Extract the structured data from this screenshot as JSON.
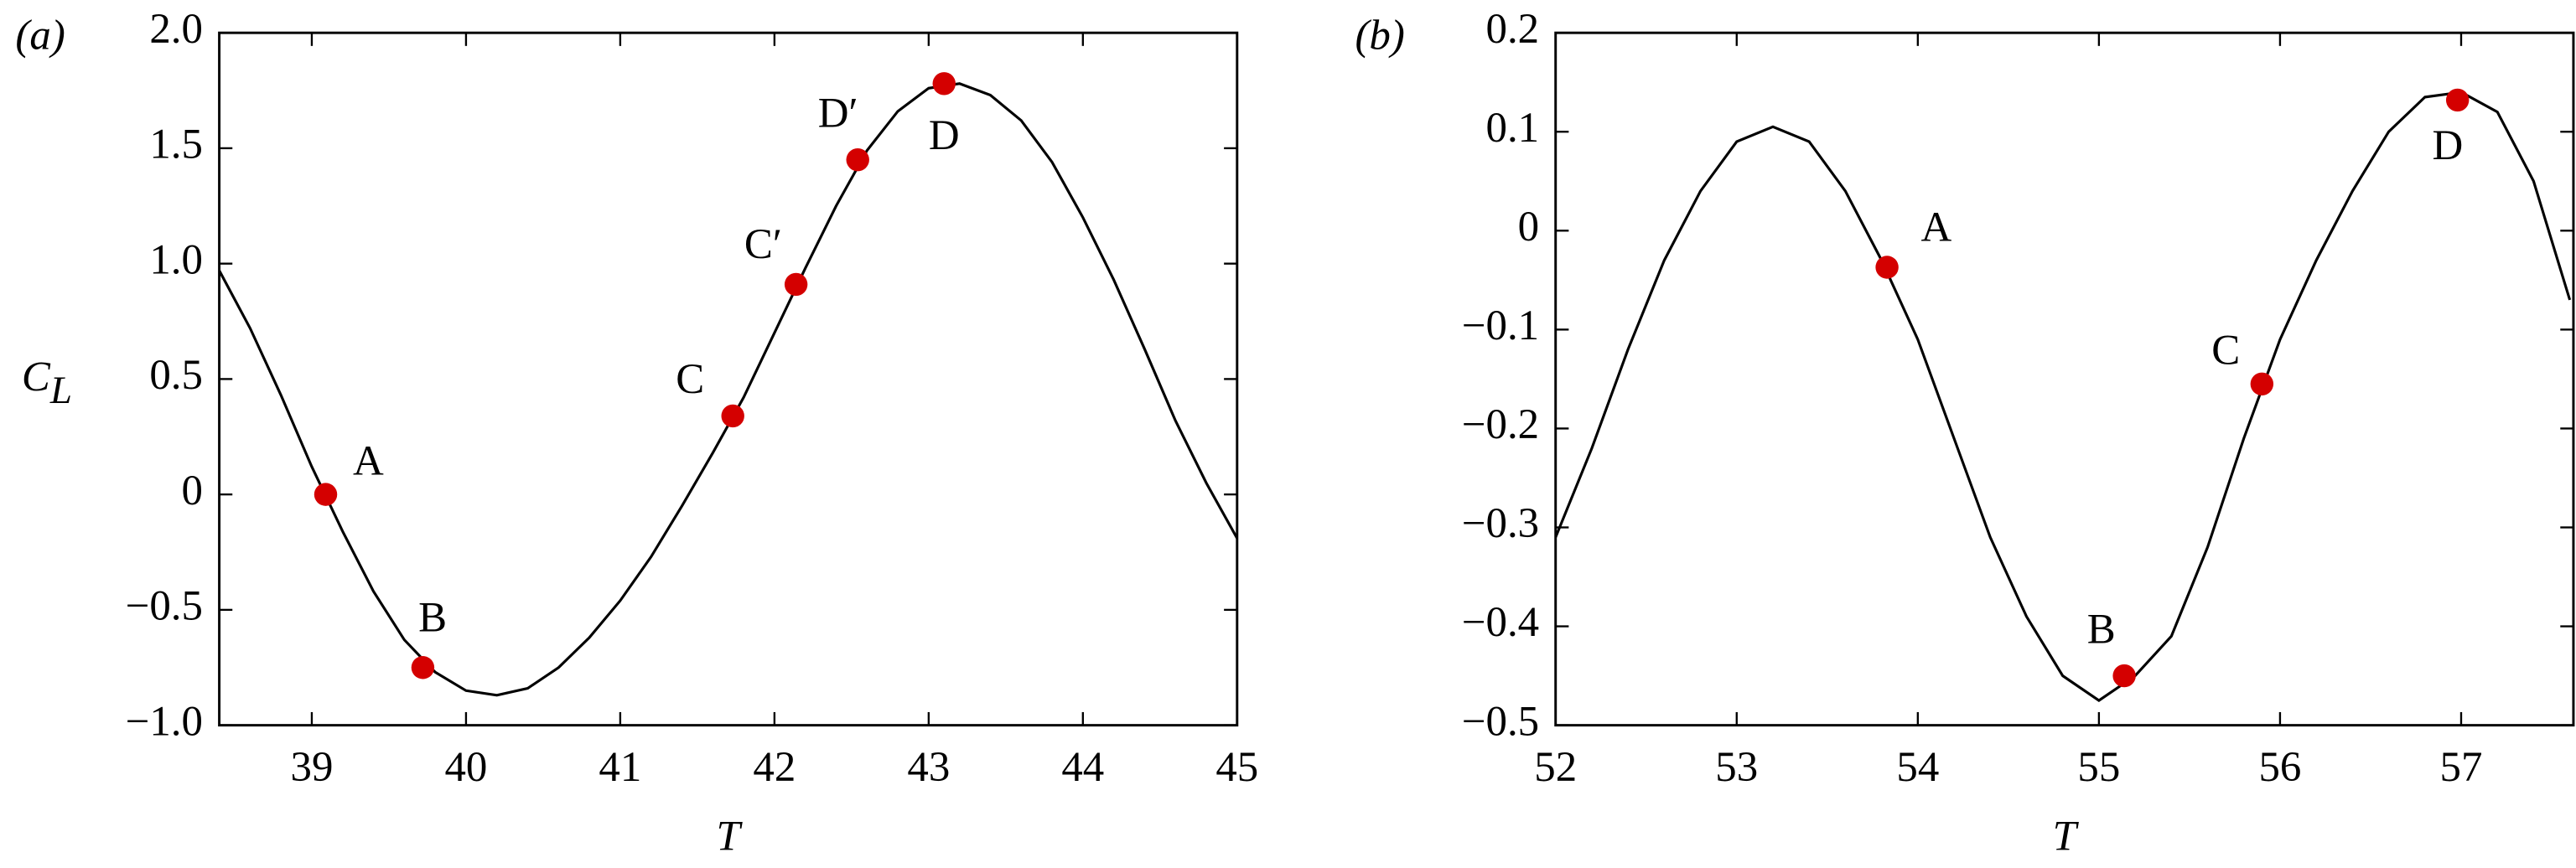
{
  "chart_data": [
    {
      "type": "line",
      "panel_label": "(a)",
      "xlabel": "T",
      "ylabel": "C",
      "ylabel_sub": "L",
      "xlim": [
        38.4,
        45
      ],
      "ylim": [
        -1,
        2
      ],
      "xticks": [
        39,
        40,
        41,
        42,
        43,
        44,
        45
      ],
      "yticks": [
        {
          "value": -1,
          "label": "−1.0"
        },
        {
          "value": -0.5,
          "label": "−0.5"
        },
        0,
        0.5,
        {
          "value": 1,
          "label": "1.0"
        },
        1.5,
        {
          "value": 2,
          "label": "2.0"
        }
      ],
      "color": "#000000",
      "point_color": "#d40000",
      "x": [
        38.4,
        38.6,
        38.8,
        39.0,
        39.2,
        39.4,
        39.6,
        39.8,
        40.0,
        40.2,
        40.4,
        40.6,
        40.8,
        41.0,
        41.2,
        41.4,
        41.6,
        41.8,
        42.0,
        42.2,
        42.4,
        42.6,
        42.8,
        43.0,
        43.2,
        43.4,
        43.6,
        43.8,
        44.0,
        44.2,
        44.4,
        44.6,
        44.8,
        45.0
      ],
      "values": [
        0.97,
        0.72,
        0.43,
        0.12,
        -0.16,
        -0.42,
        -0.63,
        -0.77,
        -0.85,
        -0.87,
        -0.84,
        -0.75,
        -0.62,
        -0.46,
        -0.27,
        -0.05,
        0.18,
        0.42,
        0.7,
        0.98,
        1.25,
        1.49,
        1.66,
        1.76,
        1.78,
        1.73,
        1.62,
        1.44,
        1.2,
        0.93,
        0.63,
        0.32,
        0.05,
        -0.19
      ],
      "points": [
        {
          "label": "A",
          "x": 39.09,
          "y": 0
        },
        {
          "label": "B",
          "x": 39.72,
          "y": -0.75
        },
        {
          "label": "C",
          "x": 41.73,
          "y": 0.34
        },
        {
          "label": "C′",
          "x": 42.14,
          "y": 0.91
        },
        {
          "label": "D′",
          "x": 42.54,
          "y": 1.45
        },
        {
          "label": "D",
          "x": 43.1,
          "y": 1.78
        }
      ]
    },
    {
      "type": "line",
      "panel_label": "(b)",
      "xlabel": "T",
      "xlim": [
        52,
        57.62
      ],
      "ylim": [
        -0.5,
        0.2
      ],
      "xticks": [
        52,
        53,
        54,
        55,
        56,
        57
      ],
      "yticks": [
        {
          "value": -0.5,
          "label": "−0.5"
        },
        {
          "value": -0.4,
          "label": "−0.4"
        },
        {
          "value": -0.3,
          "label": "−0.3"
        },
        {
          "value": -0.2,
          "label": "−0.2"
        },
        {
          "value": -0.1,
          "label": "−0.1"
        },
        0,
        0.1,
        0.2
      ],
      "color": "#000000",
      "point_color": "#d40000",
      "x": [
        52.0,
        52.2,
        52.4,
        52.6,
        52.8,
        53.0,
        53.2,
        53.4,
        53.6,
        53.8,
        54.0,
        54.2,
        54.4,
        54.6,
        54.8,
        55.0,
        55.2,
        55.4,
        55.6,
        55.8,
        56.0,
        56.2,
        56.4,
        56.6,
        56.8,
        57.0,
        57.2,
        57.4,
        57.6
      ],
      "values": [
        -0.31,
        -0.22,
        -0.12,
        -0.03,
        0.04,
        0.09,
        0.105,
        0.09,
        0.04,
        -0.03,
        -0.11,
        -0.21,
        -0.31,
        -0.39,
        -0.45,
        -0.475,
        -0.45,
        -0.41,
        -0.32,
        -0.21,
        -0.11,
        -0.03,
        0.04,
        0.1,
        0.135,
        0.14,
        0.12,
        0.05,
        -0.07
      ],
      "points": [
        {
          "label": "A",
          "x": 53.83,
          "y": -0.037
        },
        {
          "label": "B",
          "x": 55.14,
          "y": -0.45
        },
        {
          "label": "C",
          "x": 55.9,
          "y": -0.155
        },
        {
          "label": "D",
          "x": 56.98,
          "y": 0.132
        }
      ]
    }
  ]
}
